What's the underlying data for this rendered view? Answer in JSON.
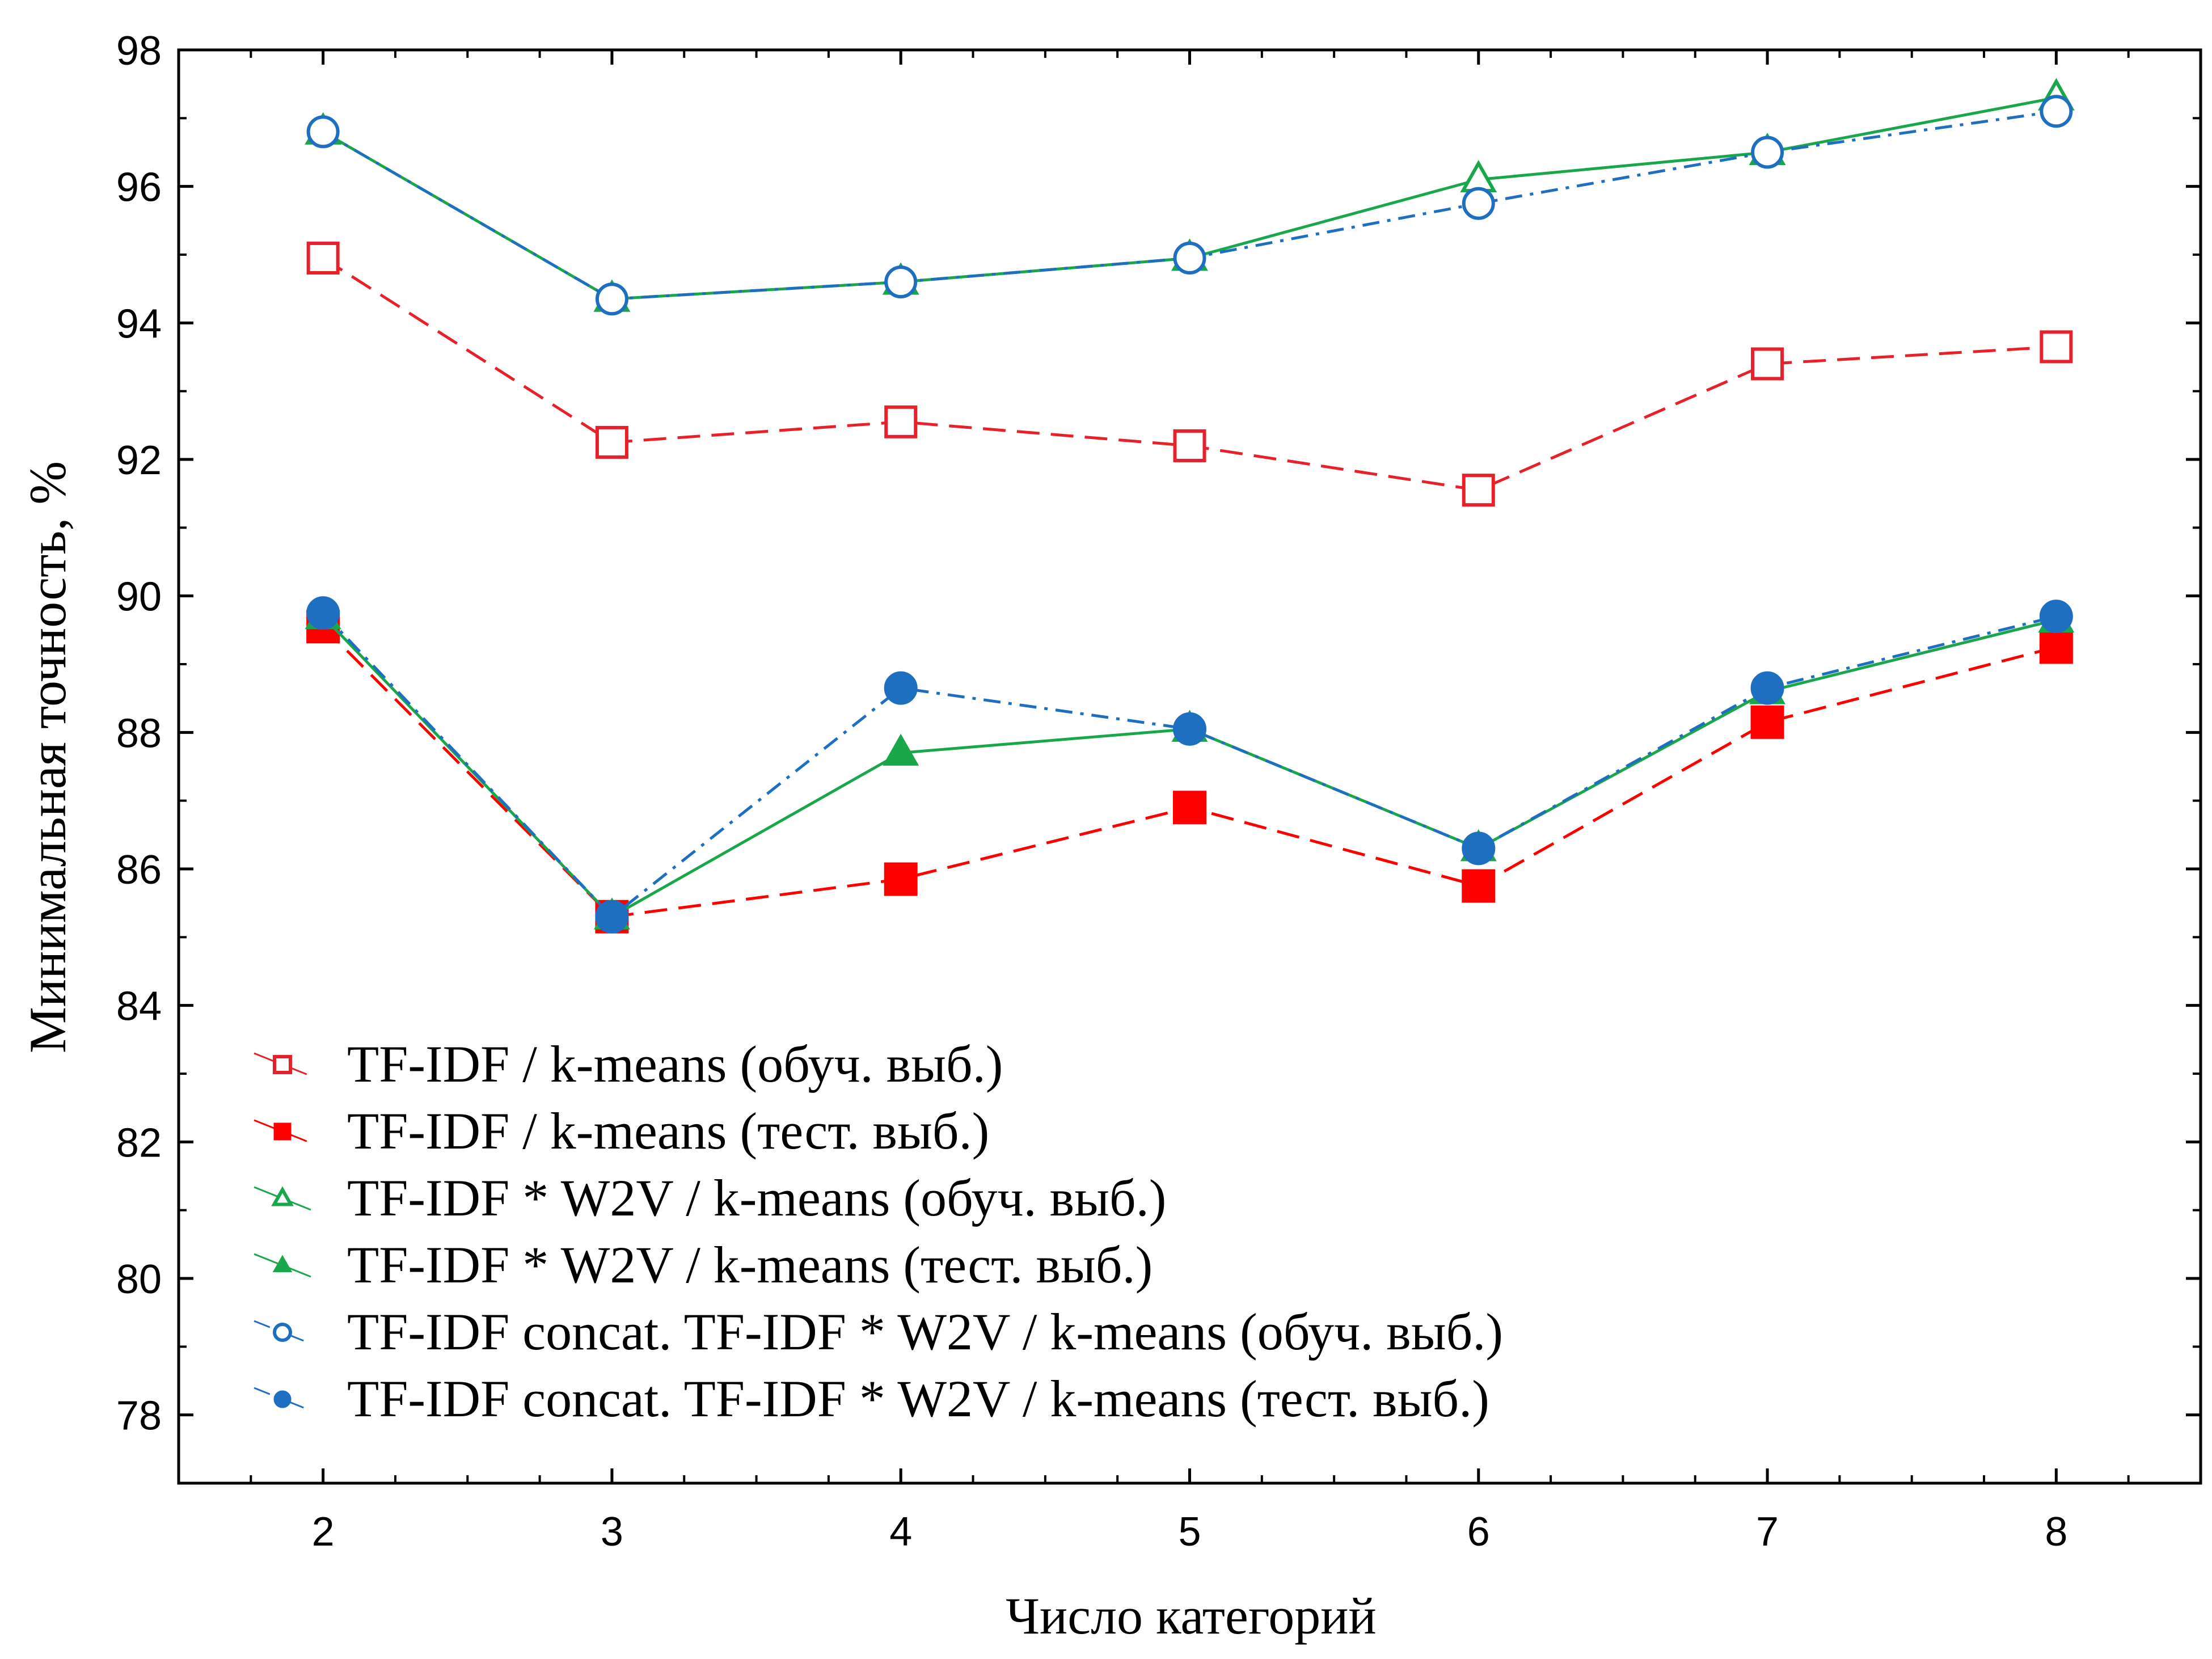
{
  "chart_data": {
    "type": "line",
    "title": "",
    "xlabel": "Число категорий",
    "ylabel": "Минимальная точность, %",
    "x": [
      2,
      3,
      4,
      5,
      6,
      7,
      8
    ],
    "xlim": [
      1.5,
      8.5
    ],
    "ylim": [
      77,
      98
    ],
    "yticks": [
      78,
      80,
      82,
      84,
      86,
      88,
      90,
      92,
      94,
      96,
      98
    ],
    "xticks": [
      2,
      3,
      4,
      5,
      6,
      7,
      8
    ],
    "grid": false,
    "legend_position": "bottom-left",
    "series": [
      {
        "name": "TF-IDF / k-means (обуч. выб.)",
        "color": "#e8202a",
        "marker": "square-open",
        "dash": "dashed",
        "values": [
          94.95,
          92.25,
          92.55,
          92.2,
          91.55,
          93.4,
          93.65
        ]
      },
      {
        "name": "TF-IDF / k-means (тест. выб.)",
        "color": "#ff0000",
        "marker": "square-filled",
        "dash": "dashed",
        "values": [
          89.55,
          85.3,
          85.85,
          86.9,
          85.75,
          88.15,
          89.25
        ]
      },
      {
        "name": "TF-IDF * W2V / k-means (обуч. выб.)",
        "color": "#1aa64a",
        "marker": "triangle-open",
        "dash": "solid",
        "values": [
          96.8,
          94.35,
          94.6,
          94.95,
          96.1,
          96.5,
          97.3
        ]
      },
      {
        "name": "TF-IDF * W2V / k-means (тест. выб.)",
        "color": "#1aa64a",
        "marker": "triangle-filled",
        "dash": "solid",
        "values": [
          89.7,
          85.3,
          87.7,
          88.05,
          86.3,
          88.6,
          89.65
        ]
      },
      {
        "name": "TF-IDF concat. TF-IDF * W2V / k-means (обуч. выб.)",
        "color": "#1f6fc0",
        "marker": "circle-open",
        "dash": "dashdot",
        "values": [
          96.8,
          94.35,
          94.6,
          94.95,
          95.75,
          96.5,
          97.1
        ]
      },
      {
        "name": "TF-IDF concat. TF-IDF * W2V / k-means (тест. выб.)",
        "color": "#1f6fc0",
        "marker": "circle-filled",
        "dash": "dashdot",
        "values": [
          89.75,
          85.3,
          88.65,
          88.05,
          86.3,
          88.65,
          89.7
        ]
      }
    ]
  }
}
